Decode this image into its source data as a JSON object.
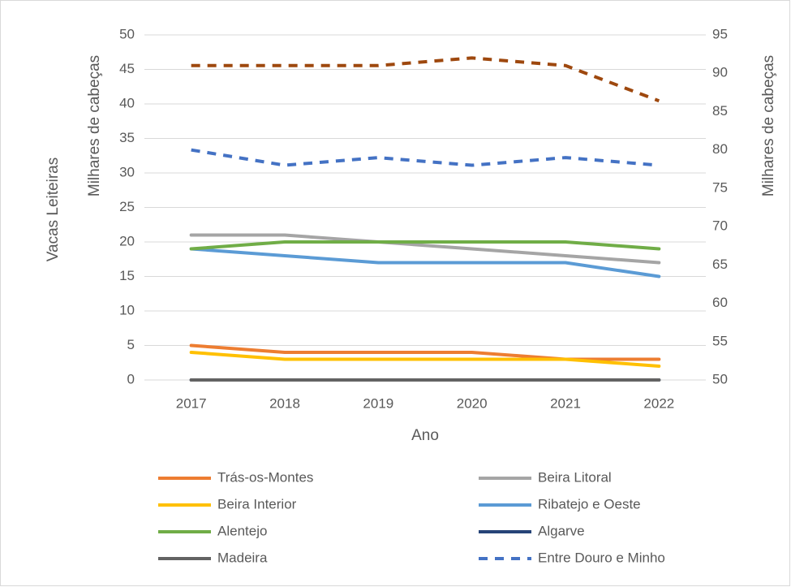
{
  "chart_data": {
    "type": "line",
    "outer_label": "Vacas Leiteiras",
    "ylabel": "Milhares de cabeças",
    "y2label": "Milhares de cabeças",
    "xlabel": "Ano",
    "categories": [
      "2017",
      "2018",
      "2019",
      "2020",
      "2021",
      "2022"
    ],
    "ylim": [
      0,
      50
    ],
    "yticks": [
      0,
      5,
      10,
      15,
      20,
      25,
      30,
      35,
      40,
      45,
      50
    ],
    "y2lim": [
      50,
      95
    ],
    "y2ticks": [
      50,
      55,
      60,
      65,
      70,
      75,
      80,
      85,
      90,
      95
    ],
    "grid": true,
    "legend": "bottom",
    "series": [
      {
        "name": "Trás-os-Montes",
        "color": "#ED7D31",
        "values": [
          5,
          4,
          4,
          4,
          3,
          3
        ]
      },
      {
        "name": "Beira Litoral",
        "color": "#A5A5A5",
        "values": [
          21,
          21,
          20,
          19,
          18,
          17
        ]
      },
      {
        "name": "Beira Interior",
        "color": "#FFC000",
        "values": [
          4,
          3,
          3,
          3,
          3,
          2
        ]
      },
      {
        "name": "Ribatejo e Oeste",
        "color": "#5B9BD5",
        "values": [
          19,
          18,
          17,
          17,
          17,
          15
        ]
      },
      {
        "name": "Alentejo",
        "color": "#70AD47",
        "values": [
          19,
          20,
          20,
          20,
          20,
          19
        ]
      },
      {
        "name": "Algarve",
        "color": "#264478",
        "values": [
          0,
          0,
          0,
          0,
          0,
          0
        ]
      },
      {
        "name": "Madeira",
        "color": "#636363",
        "values": [
          0,
          0,
          0,
          0,
          0,
          0
        ]
      },
      {
        "name": "Entre Douro e Minho",
        "color": "#4472C4",
        "dashed": true,
        "axis": "y2",
        "values": [
          80,
          78,
          79,
          78,
          79,
          78
        ]
      },
      {
        "color": "#9E480E",
        "dashed": true,
        "axis": "y2",
        "values": [
          91,
          91,
          91,
          92,
          91,
          86.4
        ]
      }
    ]
  }
}
